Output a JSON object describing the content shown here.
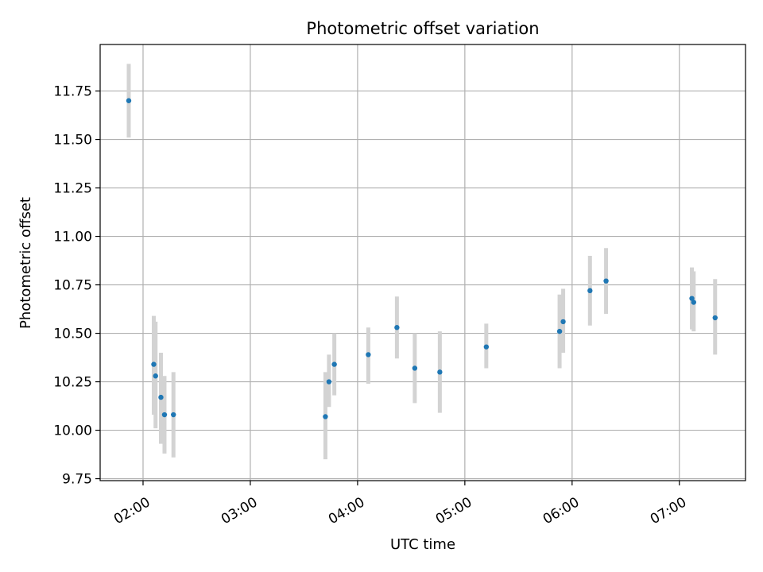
{
  "chart_data": {
    "type": "scatter",
    "title": "Photometric offset variation",
    "xlabel": "UTC time",
    "ylabel": "Photometric offset",
    "xlim": [
      "01:36",
      "07:37"
    ],
    "ylim": [
      9.74,
      11.99
    ],
    "x_ticks": [
      "02:00",
      "03:00",
      "04:00",
      "05:00",
      "06:00",
      "07:00"
    ],
    "y_ticks": [
      "9.75",
      "10.00",
      "10.25",
      "10.50",
      "10.75",
      "11.00",
      "11.25",
      "11.50",
      "11.75"
    ],
    "grid": true,
    "marker_color": "#1f77b4",
    "errorbar_color": "#d3d3d3",
    "points": [
      {
        "x": "01:52",
        "y": 11.7,
        "err_low": 11.51,
        "err_high": 11.89
      },
      {
        "x": "02:06",
        "y": 10.34,
        "err_low": 10.08,
        "err_high": 10.59
      },
      {
        "x": "02:07",
        "y": 10.28,
        "err_low": 10.01,
        "err_high": 10.56
      },
      {
        "x": "02:10",
        "y": 10.17,
        "err_low": 9.93,
        "err_high": 10.4
      },
      {
        "x": "02:12",
        "y": 10.08,
        "err_low": 9.88,
        "err_high": 10.28
      },
      {
        "x": "02:17",
        "y": 10.08,
        "err_low": 9.86,
        "err_high": 10.3
      },
      {
        "x": "03:42",
        "y": 10.07,
        "err_low": 9.85,
        "err_high": 10.3
      },
      {
        "x": "03:44",
        "y": 10.25,
        "err_low": 10.12,
        "err_high": 10.39
      },
      {
        "x": "03:47",
        "y": 10.34,
        "err_low": 10.18,
        "err_high": 10.5
      },
      {
        "x": "04:06",
        "y": 10.39,
        "err_low": 10.24,
        "err_high": 10.53
      },
      {
        "x": "04:22",
        "y": 10.53,
        "err_low": 10.37,
        "err_high": 10.69
      },
      {
        "x": "04:32",
        "y": 10.32,
        "err_low": 10.14,
        "err_high": 10.5
      },
      {
        "x": "04:46",
        "y": 10.3,
        "err_low": 10.09,
        "err_high": 10.51
      },
      {
        "x": "05:12",
        "y": 10.43,
        "err_low": 10.32,
        "err_high": 10.55
      },
      {
        "x": "05:53",
        "y": 10.51,
        "err_low": 10.32,
        "err_high": 10.7
      },
      {
        "x": "05:55",
        "y": 10.56,
        "err_low": 10.4,
        "err_high": 10.73
      },
      {
        "x": "06:10",
        "y": 10.72,
        "err_low": 10.54,
        "err_high": 10.9
      },
      {
        "x": "06:19",
        "y": 10.77,
        "err_low": 10.6,
        "err_high": 10.94
      },
      {
        "x": "07:07",
        "y": 10.68,
        "err_low": 10.52,
        "err_high": 10.84
      },
      {
        "x": "07:08",
        "y": 10.66,
        "err_low": 10.51,
        "err_high": 10.82
      },
      {
        "x": "07:20",
        "y": 10.58,
        "err_low": 10.39,
        "err_high": 10.78
      }
    ]
  }
}
